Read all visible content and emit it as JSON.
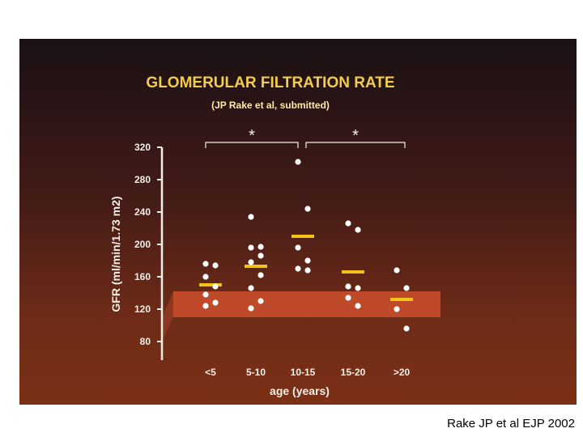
{
  "chart_data": {
    "type": "scatter",
    "title": "GLOMERULAR FILTRATION RATE",
    "subtitle": "(JP Rake et al, submitted)",
    "xlabel": "age (years)",
    "ylabel": "GFR (ml/min/1.73 m2)",
    "categories": [
      "<5",
      "5-10",
      "10-15",
      "15-20",
      ">20"
    ],
    "yticks": [
      80,
      120,
      160,
      200,
      240,
      280,
      320
    ],
    "ylim": [
      80,
      320
    ],
    "normal_range": [
      110,
      142
    ],
    "points": [
      [
        176,
        174,
        160,
        148,
        138,
        128,
        124
      ],
      [
        234,
        197,
        196,
        186,
        178,
        162,
        146,
        130,
        121
      ],
      [
        302,
        244,
        196,
        180,
        170,
        168
      ],
      [
        226,
        218,
        148,
        146,
        134,
        124
      ],
      [
        168,
        146,
        120,
        96
      ]
    ],
    "means": [
      150,
      173,
      210,
      166,
      132
    ],
    "significance": [
      {
        "from": 0,
        "to": 2,
        "label": "*"
      },
      {
        "from": 2,
        "to": 4,
        "label": "*"
      }
    ],
    "colors": {
      "points": "#ffffff",
      "means": "#f2c21b",
      "title": "#f2cc4a",
      "subtitle": "#ffe9a8",
      "axis": "#f4f0e8",
      "band": "#c64d2d",
      "band_side": "#8f3a22"
    }
  },
  "caption": "Rake JP et al EJP 2002"
}
